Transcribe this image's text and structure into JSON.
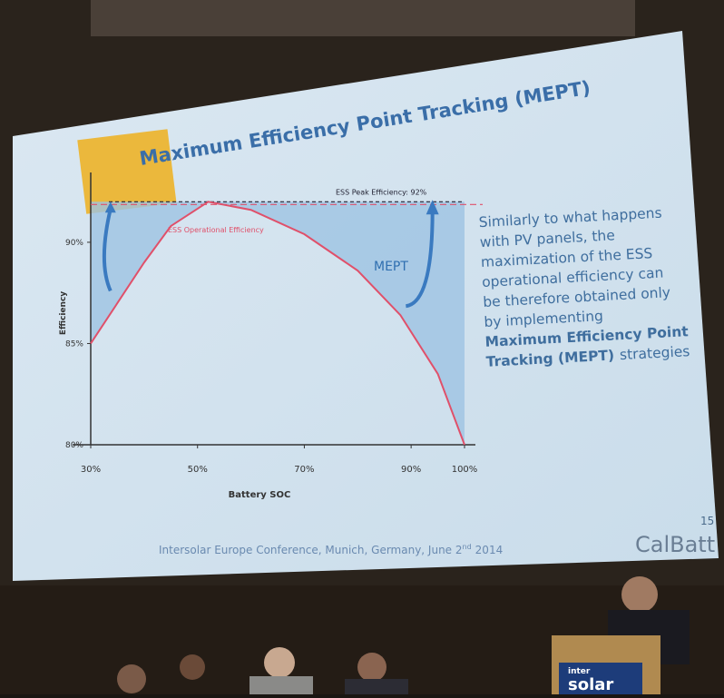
{
  "slide": {
    "title": "Maximum Efficiency Point Tracking (MEPT)",
    "body": [
      "Similarly to what happens",
      "with PV panels, the",
      "maximization of the ESS",
      "operational efficiency can",
      "be therefore obtained only",
      "by implementing"
    ],
    "body_bold": [
      "Maximum Efficiency Point",
      "Tracking (MEPT)"
    ],
    "body_tail": "strategies",
    "footer": "Intersolar Europe Conference, Munich, Germany, June 2",
    "footer_sup": "nd",
    "footer_year": "2014",
    "page_number": "15",
    "logo": "CalBatt"
  },
  "podium": {
    "line1": "inter",
    "line2": "solar"
  },
  "chart_data": {
    "type": "line",
    "x_label": "Battery SOC",
    "y_label": "Efficiency",
    "annotation": "MEPT",
    "peak": {
      "value": 92,
      "label": "ESS Peak Efficiency: 92%"
    },
    "x": [
      30,
      35,
      40,
      45,
      52,
      60,
      70,
      80,
      88,
      95,
      100
    ],
    "series": [
      {
        "name": "ESS Operational Efficiency",
        "color": "#e0506a",
        "values": [
          85,
          87,
          89,
          90.8,
          92,
          91.6,
          90.4,
          88.6,
          86.4,
          83.5,
          80
        ]
      }
    ],
    "xlim": [
      30,
      100
    ],
    "ylim": [
      80,
      93
    ],
    "xticks": [
      {
        "value": 30,
        "label": "30%"
      },
      {
        "value": 50,
        "label": "50%"
      },
      {
        "value": 70,
        "label": "70%"
      },
      {
        "value": 90,
        "label": "90%"
      },
      {
        "value": 100,
        "label": "100%"
      }
    ],
    "yticks": [
      {
        "value": 80,
        "label": "80%"
      },
      {
        "value": 85,
        "label": "85%"
      },
      {
        "value": 90,
        "label": "90%"
      }
    ]
  }
}
